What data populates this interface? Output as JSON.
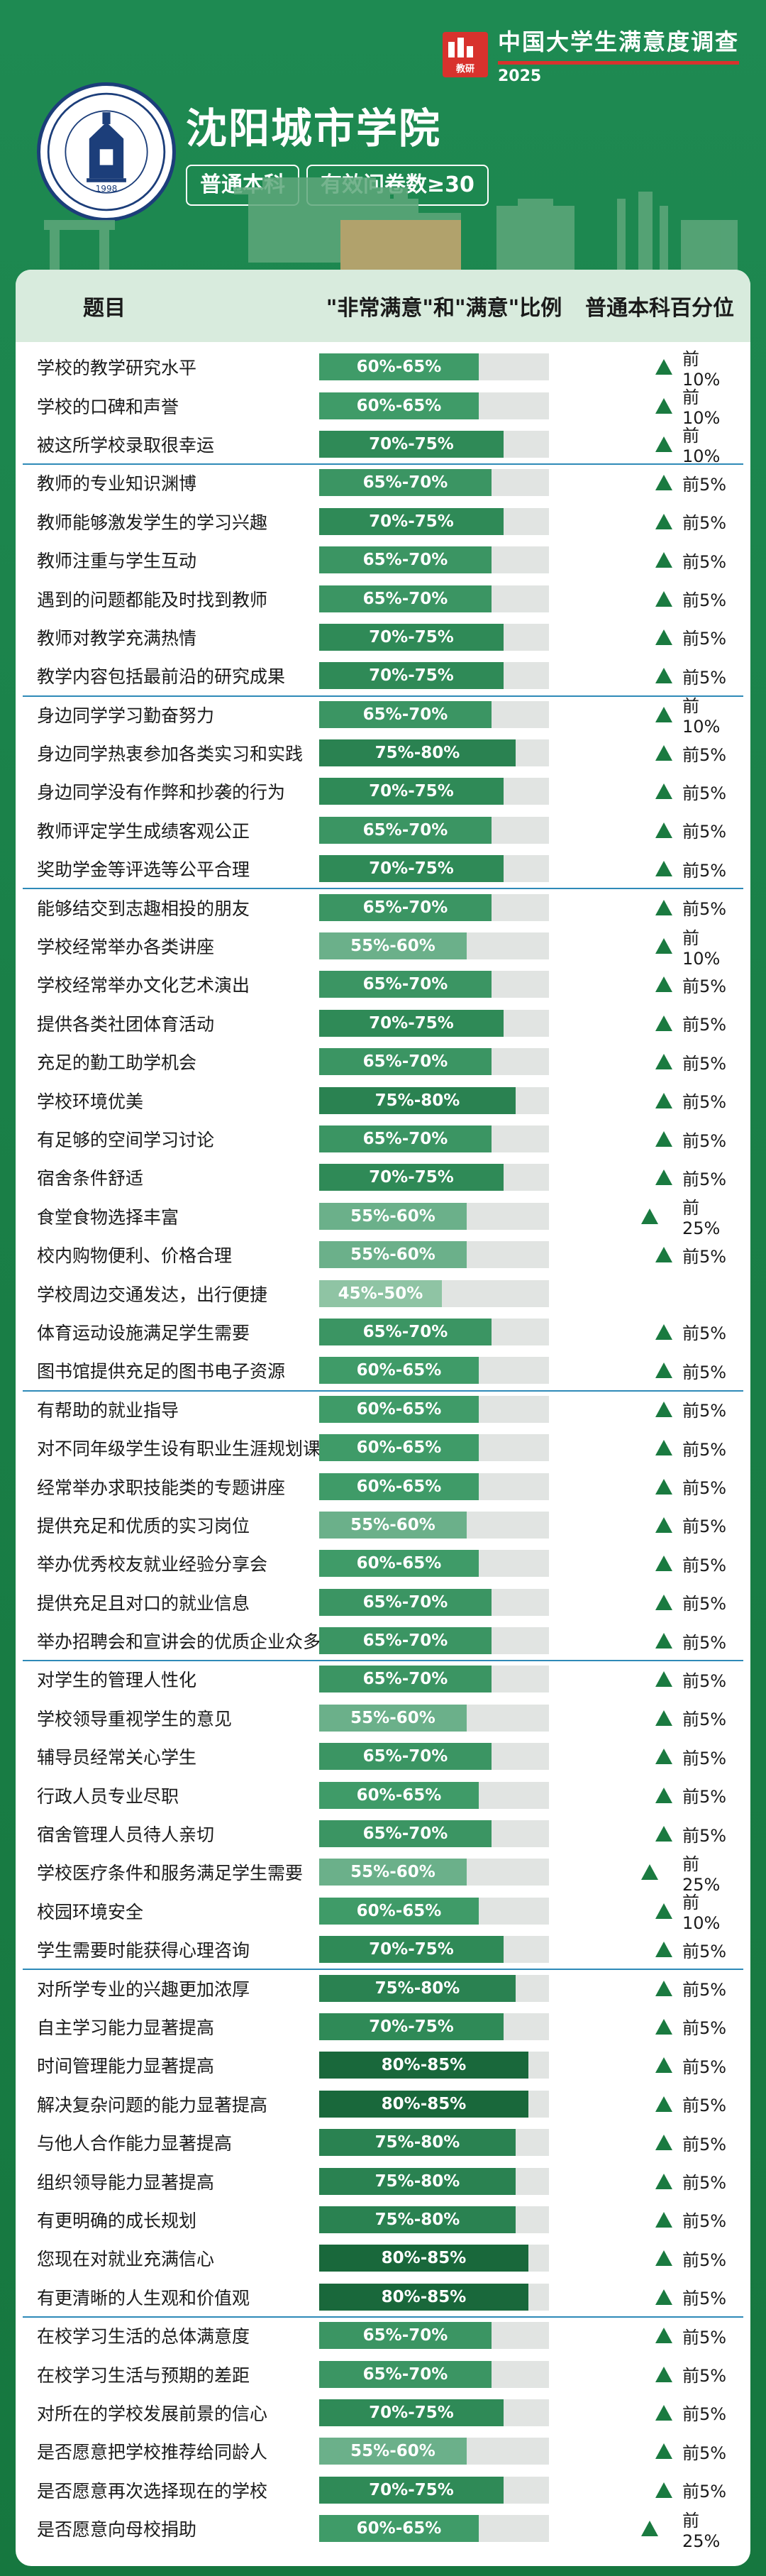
{
  "brand": {
    "title": "中国大学生满意度调查",
    "year": "2025",
    "logo_text": "教研"
  },
  "school": {
    "name": "沈阳城市学院",
    "seal_text": "沈阳城市学院 SHENYANG CITY UNIVERSITY",
    "seal_year": "1998"
  },
  "tags": [
    "普通本科",
    "有效问卷数≥30"
  ],
  "table": {
    "headers": [
      "题目",
      "\"非常满意\"和\"满意\"比例",
      "普通本科百分位"
    ],
    "rows": [
      {
        "q": "学校的教学研究水平",
        "r": "60%-65%",
        "p": "前10%",
        "g": 1
      },
      {
        "q": "学校的口碑和声誉",
        "r": "60%-65%",
        "p": "前10%",
        "g": 0
      },
      {
        "q": "被这所学校录取很幸运",
        "r": "70%-75%",
        "p": "前10%",
        "g": 0
      },
      {
        "q": "教师的专业知识渊博",
        "r": "65%-70%",
        "p": "前5%",
        "g": 1
      },
      {
        "q": "教师能够激发学生的学习兴趣",
        "r": "70%-75%",
        "p": "前5%",
        "g": 0
      },
      {
        "q": "教师注重与学生互动",
        "r": "65%-70%",
        "p": "前5%",
        "g": 0
      },
      {
        "q": "遇到的问题都能及时找到教师",
        "r": "65%-70%",
        "p": "前5%",
        "g": 0
      },
      {
        "q": "教师对教学充满热情",
        "r": "70%-75%",
        "p": "前5%",
        "g": 0
      },
      {
        "q": "教学内容包括最前沿的研究成果",
        "r": "70%-75%",
        "p": "前5%",
        "g": 0
      },
      {
        "q": "身边同学学习勤奋努力",
        "r": "65%-70%",
        "p": "前10%",
        "g": 1
      },
      {
        "q": "身边同学热衷参加各类实习和实践",
        "r": "75%-80%",
        "p": "前5%",
        "g": 0
      },
      {
        "q": "身边同学没有作弊和抄袭的行为",
        "r": "70%-75%",
        "p": "前5%",
        "g": 0
      },
      {
        "q": "教师评定学生成绩客观公正",
        "r": "65%-70%",
        "p": "前5%",
        "g": 0
      },
      {
        "q": "奖助学金等评选等公平合理",
        "r": "70%-75%",
        "p": "前5%",
        "g": 0
      },
      {
        "q": "能够结交到志趣相投的朋友",
        "r": "65%-70%",
        "p": "前5%",
        "g": 1
      },
      {
        "q": "学校经常举办各类讲座",
        "r": "55%-60%",
        "p": "前10%",
        "g": 0
      },
      {
        "q": "学校经常举办文化艺术演出",
        "r": "65%-70%",
        "p": "前5%",
        "g": 0
      },
      {
        "q": "提供各类社团体育活动",
        "r": "70%-75%",
        "p": "前5%",
        "g": 0
      },
      {
        "q": "充足的勤工助学机会",
        "r": "65%-70%",
        "p": "前5%",
        "g": 0
      },
      {
        "q": "学校环境优美",
        "r": "75%-80%",
        "p": "前5%",
        "g": 0
      },
      {
        "q": "有足够的空间学习讨论",
        "r": "65%-70%",
        "p": "前5%",
        "g": 0
      },
      {
        "q": "宿舍条件舒适",
        "r": "70%-75%",
        "p": "前5%",
        "g": 0
      },
      {
        "q": "食堂食物选择丰富",
        "r": "55%-60%",
        "p": "前25%",
        "g": 0
      },
      {
        "q": "校内购物便利、价格合理",
        "r": "55%-60%",
        "p": "前5%",
        "g": 0
      },
      {
        "q": "学校周边交通发达，出行便捷",
        "r": "45%-50%",
        "p": "",
        "g": 0
      },
      {
        "q": "体育运动设施满足学生需要",
        "r": "65%-70%",
        "p": "前5%",
        "g": 0
      },
      {
        "q": "图书馆提供充足的图书电子资源",
        "r": "60%-65%",
        "p": "前5%",
        "g": 0
      },
      {
        "q": "有帮助的就业指导",
        "r": "60%-65%",
        "p": "前5%",
        "g": 1
      },
      {
        "q": "对不同年级学生设有职业生涯规划课",
        "r": "60%-65%",
        "p": "前5%",
        "g": 0
      },
      {
        "q": "经常举办求职技能类的专题讲座",
        "r": "60%-65%",
        "p": "前5%",
        "g": 0
      },
      {
        "q": "提供充足和优质的实习岗位",
        "r": "55%-60%",
        "p": "前5%",
        "g": 0
      },
      {
        "q": "举办优秀校友就业经验分享会",
        "r": "60%-65%",
        "p": "前5%",
        "g": 0
      },
      {
        "q": "提供充足且对口的就业信息",
        "r": "65%-70%",
        "p": "前5%",
        "g": 0
      },
      {
        "q": "举办招聘会和宣讲会的优质企业众多",
        "r": "65%-70%",
        "p": "前5%",
        "g": 0
      },
      {
        "q": "对学生的管理人性化",
        "r": "65%-70%",
        "p": "前5%",
        "g": 1
      },
      {
        "q": "学校领导重视学生的意见",
        "r": "55%-60%",
        "p": "前5%",
        "g": 0
      },
      {
        "q": "辅导员经常关心学生",
        "r": "65%-70%",
        "p": "前5%",
        "g": 0
      },
      {
        "q": "行政人员专业尽职",
        "r": "60%-65%",
        "p": "前5%",
        "g": 0
      },
      {
        "q": "宿舍管理人员待人亲切",
        "r": "65%-70%",
        "p": "前5%",
        "g": 0
      },
      {
        "q": "学校医疗条件和服务满足学生需要",
        "r": "55%-60%",
        "p": "前25%",
        "g": 0
      },
      {
        "q": "校园环境安全",
        "r": "60%-65%",
        "p": "前10%",
        "g": 0
      },
      {
        "q": "学生需要时能获得心理咨询",
        "r": "70%-75%",
        "p": "前5%",
        "g": 0
      },
      {
        "q": "对所学专业的兴趣更加浓厚",
        "r": "75%-80%",
        "p": "前5%",
        "g": 1
      },
      {
        "q": "自主学习能力显著提高",
        "r": "70%-75%",
        "p": "前5%",
        "g": 0
      },
      {
        "q": "时间管理能力显著提高",
        "r": "80%-85%",
        "p": "前5%",
        "g": 0
      },
      {
        "q": "解决复杂问题的能力显著提高",
        "r": "80%-85%",
        "p": "前5%",
        "g": 0
      },
      {
        "q": "与他人合作能力显著提高",
        "r": "75%-80%",
        "p": "前5%",
        "g": 0
      },
      {
        "q": "组织领导能力显著提高",
        "r": "75%-80%",
        "p": "前5%",
        "g": 0
      },
      {
        "q": "有更明确的成长规划",
        "r": "75%-80%",
        "p": "前5%",
        "g": 0
      },
      {
        "q": "您现在对就业充满信心",
        "r": "80%-85%",
        "p": "前5%",
        "g": 0
      },
      {
        "q": "有更清晰的人生观和价值观",
        "r": "80%-85%",
        "p": "前5%",
        "g": 0
      },
      {
        "q": "在校学习生活的总体满意度",
        "r": "65%-70%",
        "p": "前5%",
        "g": 1
      },
      {
        "q": "在校学习生活与预期的差距",
        "r": "65%-70%",
        "p": "前5%",
        "g": 0
      },
      {
        "q": "对所在的学校发展前景的信心",
        "r": "70%-75%",
        "p": "前5%",
        "g": 0
      },
      {
        "q": "是否愿意把学校推荐给同龄人",
        "r": "55%-60%",
        "p": "前5%",
        "g": 0
      },
      {
        "q": "是否愿意再次选择现在的学校",
        "r": "70%-75%",
        "p": "前5%",
        "g": 0
      },
      {
        "q": "是否愿意向母校捐助",
        "r": "60%-65%",
        "p": "前25%",
        "g": 0
      }
    ]
  },
  "colors": {
    "background": "#1a8048",
    "brand_red": "#d8322d",
    "header_bg": "#d8ebdd",
    "bar_track": "#e1e4e2",
    "triangle": "#1a7a40",
    "group_rule": "#2e8ab8"
  }
}
